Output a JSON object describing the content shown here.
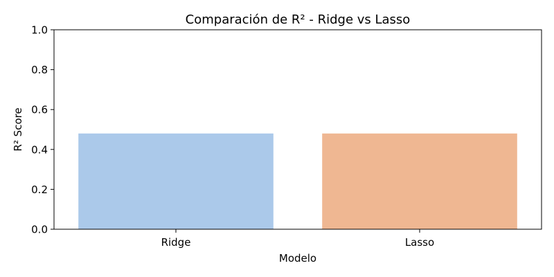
{
  "chart_data": {
    "type": "bar",
    "title": "Comparación de R² - Ridge vs Lasso",
    "xlabel": "Modelo",
    "ylabel": "R² Score",
    "categories": [
      "Ridge",
      "Lasso"
    ],
    "values": [
      0.48,
      0.48
    ],
    "ylim": [
      0,
      1
    ],
    "yticks": [
      "0.0",
      "0.2",
      "0.4",
      "0.6",
      "0.8",
      "1.0"
    ],
    "bar_colors": [
      "#abc9ea",
      "#efb792"
    ],
    "grid": false,
    "legend": "none"
  }
}
